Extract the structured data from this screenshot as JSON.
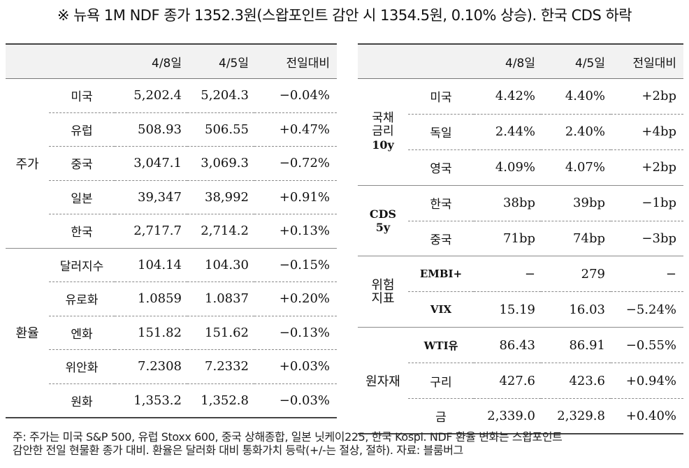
{
  "title": "※ 뉴욕 1M NDF 종가 1352.3원(스왑포인트 감안 시 1354.5원, 0.10% 상승). 한국 CDS 하락",
  "left": {
    "headers": [
      "4/8일",
      "4/5일",
      "전일대비"
    ],
    "groups": [
      {
        "name": "주가",
        "rows": [
          {
            "label": "미국",
            "d1": "5,202.4",
            "d2": "5,204.3",
            "chg": "−0.04%"
          },
          {
            "label": "유럽",
            "d1": "508.93",
            "d2": "506.55",
            "chg": "+0.47%"
          },
          {
            "label": "중국",
            "d1": "3,047.1",
            "d2": "3,069.3",
            "chg": "−0.72%"
          },
          {
            "label": "일본",
            "d1": "39,347",
            "d2": "38,992",
            "chg": "+0.91%"
          },
          {
            "label": "한국",
            "d1": "2,717.7",
            "d2": "2,714.2",
            "chg": "+0.13%"
          }
        ]
      },
      {
        "name": "환율",
        "rows": [
          {
            "label": "달러지수",
            "d1": "104.14",
            "d2": "104.30",
            "chg": "−0.15%"
          },
          {
            "label": "유로화",
            "d1": "1.0859",
            "d2": "1.0837",
            "chg": "+0.20%"
          },
          {
            "label": "엔화",
            "d1": "151.82",
            "d2": "151.62",
            "chg": "−0.13%"
          },
          {
            "label": "위안화",
            "d1": "7.2308",
            "d2": "7.2332",
            "chg": "+0.03%"
          },
          {
            "label": "원화",
            "d1": "1,353.2",
            "d2": "1,352.8",
            "chg": "−0.03%"
          }
        ]
      }
    ]
  },
  "right": {
    "headers": [
      "4/8일",
      "4/5일",
      "전일대비"
    ],
    "groups": [
      {
        "name": "국채금리10y",
        "name_lines": [
          "국채",
          "금리",
          "10y"
        ],
        "rows": [
          {
            "label": "미국",
            "d1": "4.42%",
            "d2": "4.40%",
            "chg": "+2bp"
          },
          {
            "label": "독일",
            "d1": "2.44%",
            "d2": "2.40%",
            "chg": "+4bp"
          },
          {
            "label": "영국",
            "d1": "4.09%",
            "d2": "4.07%",
            "chg": "+2bp"
          }
        ]
      },
      {
        "name": "CDS5y",
        "name_lines": [
          "CDS",
          "5y"
        ],
        "rows": [
          {
            "label": "한국",
            "d1": "38bp",
            "d2": "39bp",
            "chg": "−1bp"
          },
          {
            "label": "중국",
            "d1": "71bp",
            "d2": "74bp",
            "chg": "−3bp"
          }
        ]
      },
      {
        "name": "위험지표",
        "name_lines": [
          "위험",
          "지표"
        ],
        "rows": [
          {
            "label": "EMBI+",
            "d1": "−",
            "d2": "279",
            "chg": "−"
          },
          {
            "label": "VIX",
            "d1": "15.19",
            "d2": "16.03",
            "chg": "−5.24%"
          }
        ]
      },
      {
        "name": "원자재",
        "rows": [
          {
            "label": "WTI유",
            "d1": "86.43",
            "d2": "86.91",
            "chg": "−0.55%"
          },
          {
            "label": "구리",
            "d1": "427.6",
            "d2": "423.6",
            "chg": "+0.94%"
          },
          {
            "label": "금",
            "d1": "2,339.0",
            "d2": "2,329.8",
            "chg": "+0.40%"
          }
        ]
      }
    ]
  },
  "note": {
    "line1": "주: 주가는 미국 S&P 500, 유럽 Stoxx 600, 중국 상해종합, 일본 닛케이225, 한국 Kospi. NDF 환율 변화는 스왑포인트",
    "line2": "감안한 전일 현물환 종가 대비. 환율은 달러화 대비 통화가치 등락(+/-는 절상, 절하). 자료: 블룸버그"
  }
}
